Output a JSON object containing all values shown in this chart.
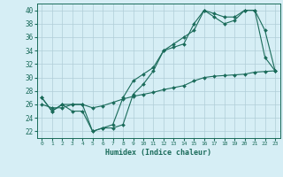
{
  "xlabel": "Humidex (Indice chaleur)",
  "background_color": "#d6eef5",
  "grid_color": "#b0cdd8",
  "line_color": "#1a6b5a",
  "xlim": [
    -0.5,
    23.5
  ],
  "ylim": [
    21.0,
    41.0
  ],
  "yticks": [
    22,
    24,
    26,
    28,
    30,
    32,
    34,
    36,
    38,
    40
  ],
  "xticks": [
    0,
    1,
    2,
    3,
    4,
    5,
    6,
    7,
    8,
    9,
    10,
    11,
    12,
    13,
    14,
    15,
    16,
    17,
    18,
    19,
    20,
    21,
    22,
    23
  ],
  "series1_x": [
    0,
    1,
    2,
    3,
    4,
    5,
    6,
    7,
    8,
    9,
    10,
    11,
    12,
    13,
    14,
    15,
    16,
    17,
    18,
    19,
    20,
    21,
    22,
    23
  ],
  "series1_y": [
    27,
    25,
    26,
    26,
    26,
    22,
    22.5,
    23,
    27,
    29.5,
    30.5,
    31.5,
    34,
    34.5,
    35,
    38,
    40,
    39.5,
    39,
    39,
    40,
    40,
    37,
    31
  ],
  "series2_x": [
    0,
    1,
    2,
    3,
    4,
    5,
    6,
    7,
    8,
    9,
    10,
    11,
    12,
    13,
    14,
    15,
    16,
    17,
    18,
    19,
    20,
    21,
    22,
    23
  ],
  "series2_y": [
    27,
    25,
    26,
    25,
    25,
    22,
    22.5,
    22.5,
    23,
    27.5,
    29,
    31,
    34,
    35,
    36,
    37,
    40,
    39,
    38,
    38.5,
    40,
    40,
    33,
    31
  ],
  "series3_x": [
    0,
    1,
    2,
    3,
    4,
    5,
    6,
    7,
    8,
    9,
    10,
    11,
    12,
    13,
    14,
    15,
    16,
    17,
    18,
    19,
    20,
    21,
    22,
    23
  ],
  "series3_y": [
    26,
    25.5,
    25.5,
    26,
    26,
    25.5,
    25.8,
    26.3,
    26.8,
    27.2,
    27.5,
    27.8,
    28.2,
    28.5,
    28.8,
    29.5,
    30,
    30.2,
    30.3,
    30.4,
    30.5,
    30.8,
    30.9,
    31
  ],
  "markersize": 2.0,
  "linewidth": 0.8
}
